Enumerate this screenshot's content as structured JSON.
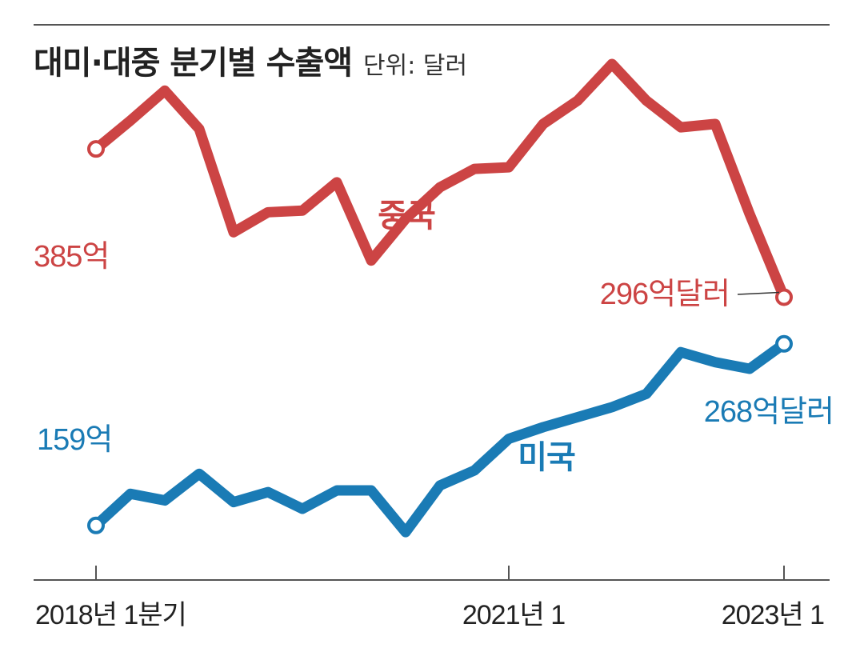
{
  "title": "대미·대중 분기별 수출액",
  "unit": "단위: 달러",
  "colors": {
    "china": "#cc4444",
    "us": "#1a7bb5",
    "axis": "#555555",
    "text": "#222222"
  },
  "chart_data": {
    "type": "line",
    "title": "대미·대중 분기별 수출액",
    "unit": "달러",
    "x": [
      1,
      2,
      3,
      4,
      5,
      6,
      7,
      8,
      9,
      10,
      11,
      12,
      13,
      14,
      15,
      16,
      17,
      18,
      19,
      20,
      21
    ],
    "tick_labels": [
      {
        "x": 1,
        "label": "2018년 1분기"
      },
      {
        "x": 13,
        "label": "2021년 1"
      },
      {
        "x": 21,
        "label": "2023년 1"
      }
    ],
    "ylim": [
      120,
      460
    ],
    "series": [
      {
        "name": "중국",
        "color": "#cc4444",
        "values": [
          385,
          402,
          420,
          397,
          335,
          347,
          348,
          365,
          318,
          343,
          362,
          373,
          374,
          400,
          414,
          436,
          414,
          398,
          400,
          346,
          296
        ],
        "start_label": "385억",
        "end_label": "296억달러"
      },
      {
        "name": "미국",
        "color": "#1a7bb5",
        "values": [
          159,
          178,
          174,
          190,
          173,
          179,
          169,
          180,
          180,
          155,
          183,
          192,
          211,
          218,
          224,
          230,
          238,
          263,
          257,
          253,
          268
        ],
        "start_label": "159억",
        "end_label": "268억달러"
      }
    ]
  }
}
